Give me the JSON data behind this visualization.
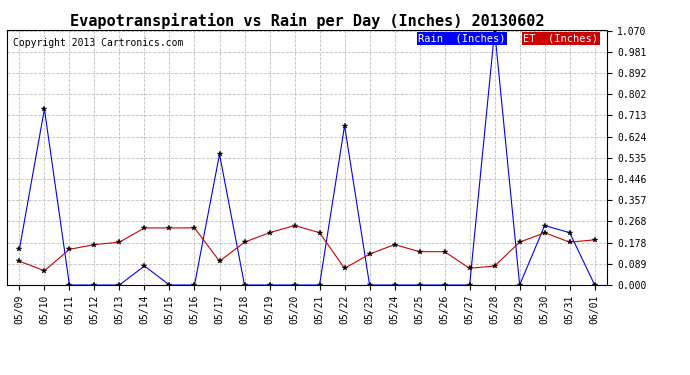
{
  "title": "Evapotranspiration vs Rain per Day (Inches) 20130602",
  "copyright": "Copyright 2013 Cartronics.com",
  "x_labels": [
    "05/09",
    "05/10",
    "05/11",
    "05/12",
    "05/13",
    "05/14",
    "05/15",
    "05/16",
    "05/17",
    "05/18",
    "05/19",
    "05/20",
    "05/21",
    "05/22",
    "05/23",
    "05/24",
    "05/25",
    "05/26",
    "05/27",
    "05/28",
    "05/29",
    "05/30",
    "05/31",
    "06/01"
  ],
  "rain_inches": [
    0.15,
    0.74,
    0.0,
    0.0,
    0.0,
    0.08,
    0.0,
    0.0,
    0.55,
    0.0,
    0.0,
    0.0,
    0.0,
    0.67,
    0.0,
    0.0,
    0.0,
    0.0,
    0.0,
    1.07,
    0.0,
    0.25,
    0.22,
    0.0
  ],
  "et_inches": [
    0.1,
    0.06,
    0.15,
    0.17,
    0.18,
    0.24,
    0.24,
    0.24,
    0.1,
    0.18,
    0.22,
    0.25,
    0.22,
    0.07,
    0.13,
    0.17,
    0.14,
    0.14,
    0.07,
    0.08,
    0.18,
    0.22,
    0.18,
    0.19
  ],
  "rain_color": "#0000ff",
  "et_color": "#cc0000",
  "background_color": "#ffffff",
  "grid_color": "#c0c0c0",
  "ylim": [
    0.0,
    1.07
  ],
  "yticks": [
    0.0,
    0.089,
    0.178,
    0.268,
    0.357,
    0.446,
    0.535,
    0.624,
    0.713,
    0.802,
    0.892,
    0.981,
    1.07
  ],
  "legend_rain_label": "Rain  (Inches)",
  "legend_et_label": "ET  (Inches)",
  "title_fontsize": 11,
  "tick_fontsize": 7,
  "copyright_fontsize": 7,
  "legend_fontsize": 7.5
}
